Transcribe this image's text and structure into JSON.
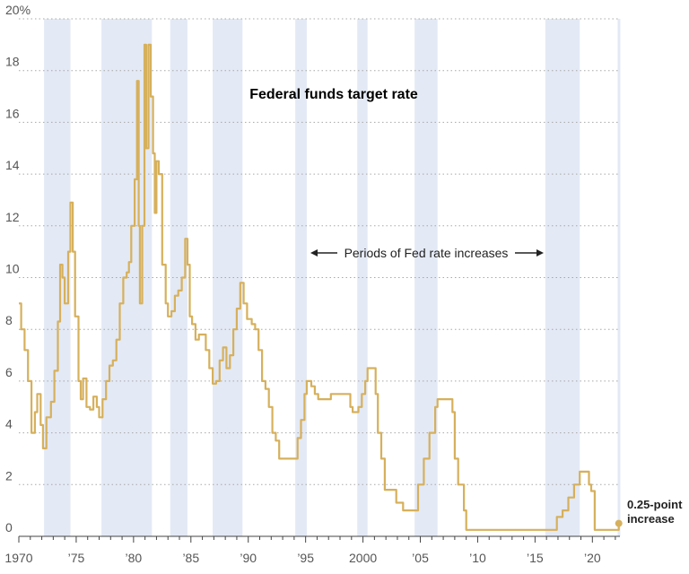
{
  "chart_data": {
    "type": "line",
    "title": "Federal funds target rate",
    "xlabel": "",
    "ylabel": "",
    "xlim": [
      1970,
      2022.4
    ],
    "ylim": [
      0,
      20
    ],
    "grid": true,
    "legend": "none",
    "y_ticks": [
      0,
      2,
      4,
      6,
      8,
      10,
      12,
      14,
      16,
      18,
      20
    ],
    "y_tick_labels": [
      "0",
      "2",
      "4",
      "6",
      "8",
      "10",
      "12",
      "14",
      "16",
      "18",
      "20%"
    ],
    "x_ticks": [
      1970,
      1975,
      1980,
      1985,
      1990,
      1995,
      2000,
      2005,
      2010,
      2015,
      2020
    ],
    "x_tick_labels": [
      "1970",
      "’75",
      "’80",
      "’85",
      "’90",
      "’95",
      "2000",
      "’05",
      "’10",
      "’15",
      "’20"
    ],
    "shaded_periods": [
      [
        1972.2,
        1974.5
      ],
      [
        1977.2,
        1981.6
      ],
      [
        1983.2,
        1984.7
      ],
      [
        1986.9,
        1989.5
      ],
      [
        1994.1,
        1995.1
      ],
      [
        1999.5,
        2000.4
      ],
      [
        2004.5,
        2006.5
      ],
      [
        2015.9,
        2018.9
      ],
      [
        2022.2,
        2022.4
      ]
    ],
    "annotation_periods": "Periods of Fed rate increases",
    "annotation_end": [
      "0.25-point",
      "increase"
    ],
    "series": [
      {
        "points": [
          [
            1970.0,
            9.0
          ],
          [
            1970.2,
            8.0
          ],
          [
            1970.5,
            7.2
          ],
          [
            1970.8,
            6.0
          ],
          [
            1971.1,
            4.0
          ],
          [
            1971.4,
            4.8
          ],
          [
            1971.6,
            5.5
          ],
          [
            1971.9,
            4.3
          ],
          [
            1972.1,
            3.4
          ],
          [
            1972.4,
            4.6
          ],
          [
            1972.8,
            5.2
          ],
          [
            1973.1,
            6.4
          ],
          [
            1973.4,
            8.3
          ],
          [
            1973.6,
            10.5
          ],
          [
            1973.8,
            10.0
          ],
          [
            1974.0,
            9.0
          ],
          [
            1974.3,
            11.0
          ],
          [
            1974.5,
            12.9
          ],
          [
            1974.7,
            11.0
          ],
          [
            1974.9,
            8.5
          ],
          [
            1975.2,
            6.0
          ],
          [
            1975.4,
            5.3
          ],
          [
            1975.6,
            6.1
          ],
          [
            1975.9,
            5.0
          ],
          [
            1976.2,
            4.9
          ],
          [
            1976.5,
            5.4
          ],
          [
            1976.8,
            5.0
          ],
          [
            1977.0,
            4.6
          ],
          [
            1977.3,
            5.3
          ],
          [
            1977.6,
            6.0
          ],
          [
            1977.9,
            6.6
          ],
          [
            1978.2,
            6.8
          ],
          [
            1978.5,
            7.6
          ],
          [
            1978.8,
            9.0
          ],
          [
            1979.1,
            10.0
          ],
          [
            1979.4,
            10.2
          ],
          [
            1979.6,
            10.6
          ],
          [
            1979.8,
            12.0
          ],
          [
            1980.1,
            13.8
          ],
          [
            1980.3,
            17.6
          ],
          [
            1980.45,
            12.0
          ],
          [
            1980.55,
            9.0
          ],
          [
            1980.75,
            12.0
          ],
          [
            1980.95,
            19.0
          ],
          [
            1981.1,
            15.0
          ],
          [
            1981.3,
            19.0
          ],
          [
            1981.5,
            17.0
          ],
          [
            1981.7,
            14.8
          ],
          [
            1981.85,
            12.5
          ],
          [
            1982.0,
            14.5
          ],
          [
            1982.2,
            14.0
          ],
          [
            1982.5,
            10.5
          ],
          [
            1982.8,
            9.0
          ],
          [
            1983.0,
            8.5
          ],
          [
            1983.3,
            8.7
          ],
          [
            1983.6,
            9.3
          ],
          [
            1983.9,
            9.5
          ],
          [
            1984.2,
            10.0
          ],
          [
            1984.5,
            11.5
          ],
          [
            1984.7,
            10.5
          ],
          [
            1984.9,
            8.5
          ],
          [
            1985.1,
            8.2
          ],
          [
            1985.4,
            7.6
          ],
          [
            1985.7,
            7.8
          ],
          [
            1986.0,
            7.8
          ],
          [
            1986.3,
            7.2
          ],
          [
            1986.6,
            6.5
          ],
          [
            1986.9,
            5.9
          ],
          [
            1987.2,
            6.0
          ],
          [
            1987.5,
            6.8
          ],
          [
            1987.8,
            7.3
          ],
          [
            1988.1,
            6.5
          ],
          [
            1988.4,
            7.0
          ],
          [
            1988.7,
            8.0
          ],
          [
            1989.0,
            8.8
          ],
          [
            1989.3,
            9.8
          ],
          [
            1989.6,
            9.0
          ],
          [
            1989.9,
            8.4
          ],
          [
            1990.3,
            8.2
          ],
          [
            1990.6,
            8.0
          ],
          [
            1990.9,
            7.2
          ],
          [
            1991.2,
            6.0
          ],
          [
            1991.5,
            5.7
          ],
          [
            1991.8,
            5.0
          ],
          [
            1992.1,
            4.0
          ],
          [
            1992.4,
            3.7
          ],
          [
            1992.7,
            3.0
          ],
          [
            1993.2,
            3.0
          ],
          [
            1994.0,
            3.0
          ],
          [
            1994.3,
            3.8
          ],
          [
            1994.6,
            4.5
          ],
          [
            1994.9,
            5.5
          ],
          [
            1995.1,
            6.0
          ],
          [
            1995.5,
            5.8
          ],
          [
            1995.8,
            5.5
          ],
          [
            1996.1,
            5.3
          ],
          [
            1997.2,
            5.5
          ],
          [
            1998.6,
            5.5
          ],
          [
            1998.9,
            5.0
          ],
          [
            1999.1,
            4.8
          ],
          [
            1999.6,
            5.0
          ],
          [
            1999.9,
            5.5
          ],
          [
            2000.2,
            6.0
          ],
          [
            2000.4,
            6.5
          ],
          [
            2000.9,
            6.5
          ],
          [
            2001.1,
            5.5
          ],
          [
            2001.3,
            4.0
          ],
          [
            2001.6,
            3.0
          ],
          [
            2001.9,
            1.8
          ],
          [
            2002.9,
            1.3
          ],
          [
            2003.5,
            1.0
          ],
          [
            2004.5,
            1.0
          ],
          [
            2004.8,
            2.0
          ],
          [
            2005.3,
            3.0
          ],
          [
            2005.8,
            4.0
          ],
          [
            2006.3,
            5.0
          ],
          [
            2006.5,
            5.3
          ],
          [
            2007.6,
            5.3
          ],
          [
            2007.8,
            4.8
          ],
          [
            2008.0,
            3.0
          ],
          [
            2008.3,
            2.0
          ],
          [
            2008.8,
            1.0
          ],
          [
            2009.0,
            0.25
          ],
          [
            2015.9,
            0.25
          ],
          [
            2016.9,
            0.75
          ],
          [
            2017.4,
            1.0
          ],
          [
            2017.9,
            1.5
          ],
          [
            2018.4,
            2.0
          ],
          [
            2018.9,
            2.5
          ],
          [
            2019.5,
            2.5
          ],
          [
            2019.7,
            2.0
          ],
          [
            2019.9,
            1.75
          ],
          [
            2020.2,
            0.25
          ],
          [
            2022.2,
            0.25
          ],
          [
            2022.3,
            0.5
          ]
        ]
      }
    ],
    "colors": {
      "line": "#d6b05c",
      "shade": "#e3e9f5",
      "grid": "#a8a8a8",
      "axis": "#444444"
    }
  }
}
